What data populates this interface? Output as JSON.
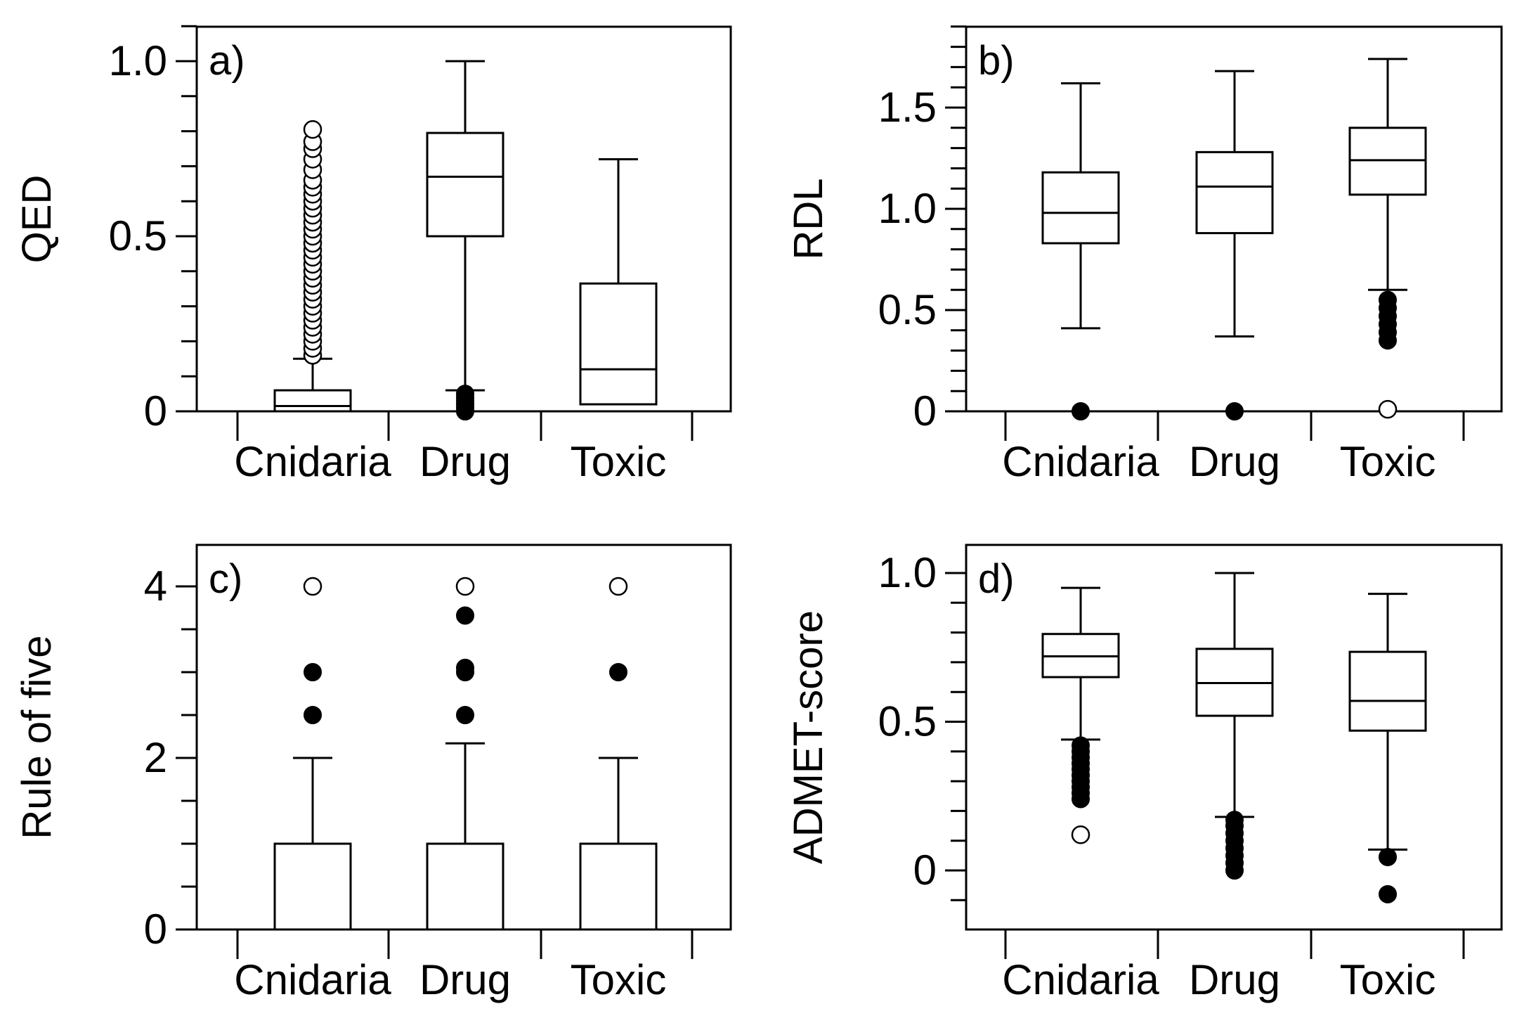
{
  "chart_data": [
    {
      "type": "box",
      "panel_label": "a)",
      "ylabel": "QED",
      "categories": [
        "Cnidaria",
        "Drug",
        "Toxic"
      ],
      "yticks": [
        {
          "value": 0,
          "label": "0"
        },
        {
          "value": 0.5,
          "label": "0.5"
        },
        {
          "value": 1.0,
          "label": "1.0"
        }
      ],
      "ylim": [
        0,
        1.1
      ],
      "boxes": [
        {
          "category": "Cnidaria",
          "whisker_low": 0,
          "q1": 0,
          "median": 0.015,
          "q3": 0.06,
          "whisker_high": 0.15,
          "outliers_filled": [],
          "outliers_open": [
            0.16,
            0.18,
            0.2,
            0.22,
            0.24,
            0.26,
            0.28,
            0.3,
            0.32,
            0.34,
            0.36,
            0.38,
            0.4,
            0.42,
            0.44,
            0.46,
            0.48,
            0.5,
            0.52,
            0.54,
            0.56,
            0.58,
            0.6,
            0.62,
            0.64,
            0.66,
            0.69,
            0.72,
            0.75,
            0.77,
            0.805
          ]
        },
        {
          "category": "Drug",
          "whisker_low": 0.06,
          "q1": 0.5,
          "median": 0.67,
          "q3": 0.795,
          "whisker_high": 1.0,
          "outliers_filled": [
            0,
            0.01,
            0.02,
            0.03,
            0.04,
            0.05
          ],
          "outliers_open": []
        },
        {
          "category": "Toxic",
          "whisker_low": 0.02,
          "q1": 0.02,
          "median": 0.12,
          "q3": 0.365,
          "whisker_high": 0.72,
          "outliers_filled": [],
          "outliers_open": []
        }
      ]
    },
    {
      "type": "box",
      "panel_label": "b)",
      "ylabel": "RDL",
      "categories": [
        "Cnidaria",
        "Drug",
        "Toxic"
      ],
      "yticks": [
        {
          "value": 0,
          "label": "0"
        },
        {
          "value": 0.5,
          "label": "0.5"
        },
        {
          "value": 1.0,
          "label": "1.0"
        },
        {
          "value": 1.5,
          "label": "1.5"
        }
      ],
      "ylim": [
        0,
        1.9
      ],
      "boxes": [
        {
          "category": "Cnidaria",
          "whisker_low": 0.41,
          "q1": 0.83,
          "median": 0.98,
          "q3": 1.18,
          "whisker_high": 1.62,
          "outliers_filled": [
            0
          ],
          "outliers_open": []
        },
        {
          "category": "Drug",
          "whisker_low": 0.37,
          "q1": 0.88,
          "median": 1.11,
          "q3": 1.28,
          "whisker_high": 1.68,
          "outliers_filled": [
            0
          ],
          "outliers_open": []
        },
        {
          "category": "Toxic",
          "whisker_low": 0.6,
          "q1": 1.07,
          "median": 1.24,
          "q3": 1.4,
          "whisker_high": 1.74,
          "outliers_filled": [
            0.35,
            0.39,
            0.43,
            0.47,
            0.51,
            0.55
          ],
          "outliers_open": [
            0.01
          ]
        }
      ]
    },
    {
      "type": "box",
      "panel_label": "c)",
      "ylabel": "Rule of five",
      "categories": [
        "Cnidaria",
        "Drug",
        "Toxic"
      ],
      "yticks": [
        {
          "value": 0,
          "label": "0"
        },
        {
          "value": 2,
          "label": "2"
        },
        {
          "value": 4,
          "label": "4"
        }
      ],
      "ylim": [
        0,
        4.4
      ],
      "boxes": [
        {
          "category": "Cnidaria",
          "whisker_low": 0,
          "q1": 0,
          "median": 0,
          "q3": 1,
          "whisker_high": 2,
          "outliers_filled": [
            2.5,
            3
          ],
          "outliers_open": [
            4
          ]
        },
        {
          "category": "Drug",
          "whisker_low": 0,
          "q1": 0,
          "median": 0,
          "q3": 1,
          "whisker_high": 2.17,
          "outliers_filled": [
            2.5,
            3,
            3.05,
            3.66
          ],
          "outliers_open": [
            4
          ]
        },
        {
          "category": "Toxic",
          "whisker_low": 0,
          "q1": 0,
          "median": 0,
          "q3": 1,
          "whisker_high": 2,
          "outliers_filled": [
            3
          ],
          "outliers_open": [
            4
          ]
        }
      ]
    },
    {
      "type": "box",
      "panel_label": "d)",
      "ylabel": "ADMET-score",
      "categories": [
        "Cnidaria",
        "Drug",
        "Toxic"
      ],
      "yticks": [
        {
          "value": 0,
          "label": "0"
        },
        {
          "value": 0.5,
          "label": "0.5"
        },
        {
          "value": 1.0,
          "label": "1.0"
        }
      ],
      "ylim": [
        -0.2,
        1.1
      ],
      "boxes": [
        {
          "category": "Cnidaria",
          "whisker_low": 0.44,
          "q1": 0.65,
          "median": 0.72,
          "q3": 0.795,
          "whisker_high": 0.95,
          "outliers_filled": [
            0.24,
            0.26,
            0.28,
            0.3,
            0.32,
            0.34,
            0.36,
            0.38,
            0.4,
            0.42
          ],
          "outliers_open": [
            0.12
          ]
        },
        {
          "category": "Drug",
          "whisker_low": 0.18,
          "q1": 0.52,
          "median": 0.63,
          "q3": 0.745,
          "whisker_high": 1.0,
          "outliers_filled": [
            0,
            0.025,
            0.05,
            0.075,
            0.1,
            0.125,
            0.15,
            0.17
          ],
          "outliers_open": []
        },
        {
          "category": "Toxic",
          "whisker_low": 0.07,
          "q1": 0.47,
          "median": 0.57,
          "q3": 0.735,
          "whisker_high": 0.93,
          "outliers_filled": [
            -0.08,
            0.045
          ],
          "outliers_open": []
        }
      ]
    }
  ]
}
